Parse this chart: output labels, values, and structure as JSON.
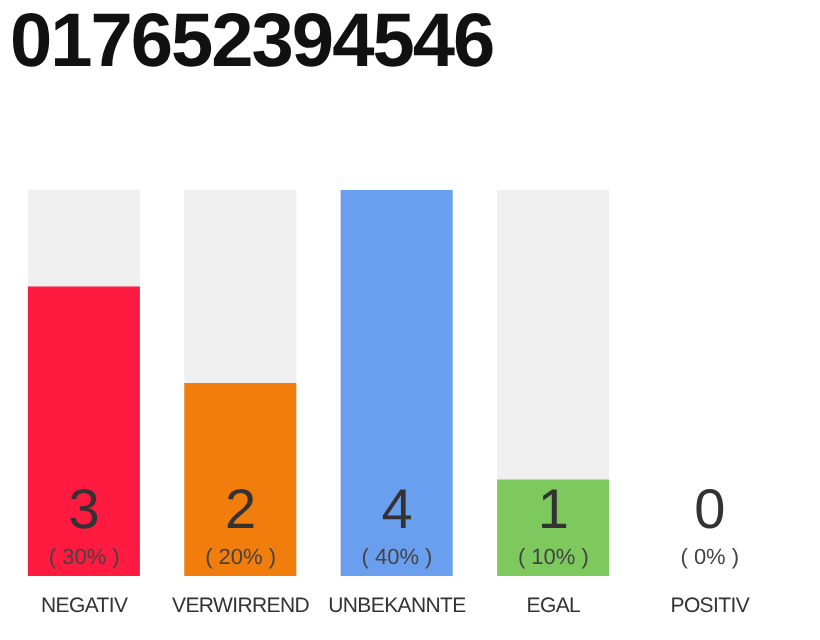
{
  "chart_data": {
    "type": "bar",
    "title": "017652394546",
    "categories": [
      "NEGATIV",
      "VERWIRREND",
      "UNBEKANNTE",
      "EGAL",
      "POSITIV"
    ],
    "values": [
      3,
      2,
      4,
      1,
      0
    ],
    "colors": [
      "#ff1a40",
      "#f07d0c",
      "#6a9ff0",
      "#7dc95e",
      "#dddddd"
    ],
    "tick_labels": "x",
    "data_labels": true,
    "annotations": [
      "( 30% )",
      "( 20% )",
      "( 40% )",
      "( 10% )",
      "( 0% )"
    ]
  }
}
